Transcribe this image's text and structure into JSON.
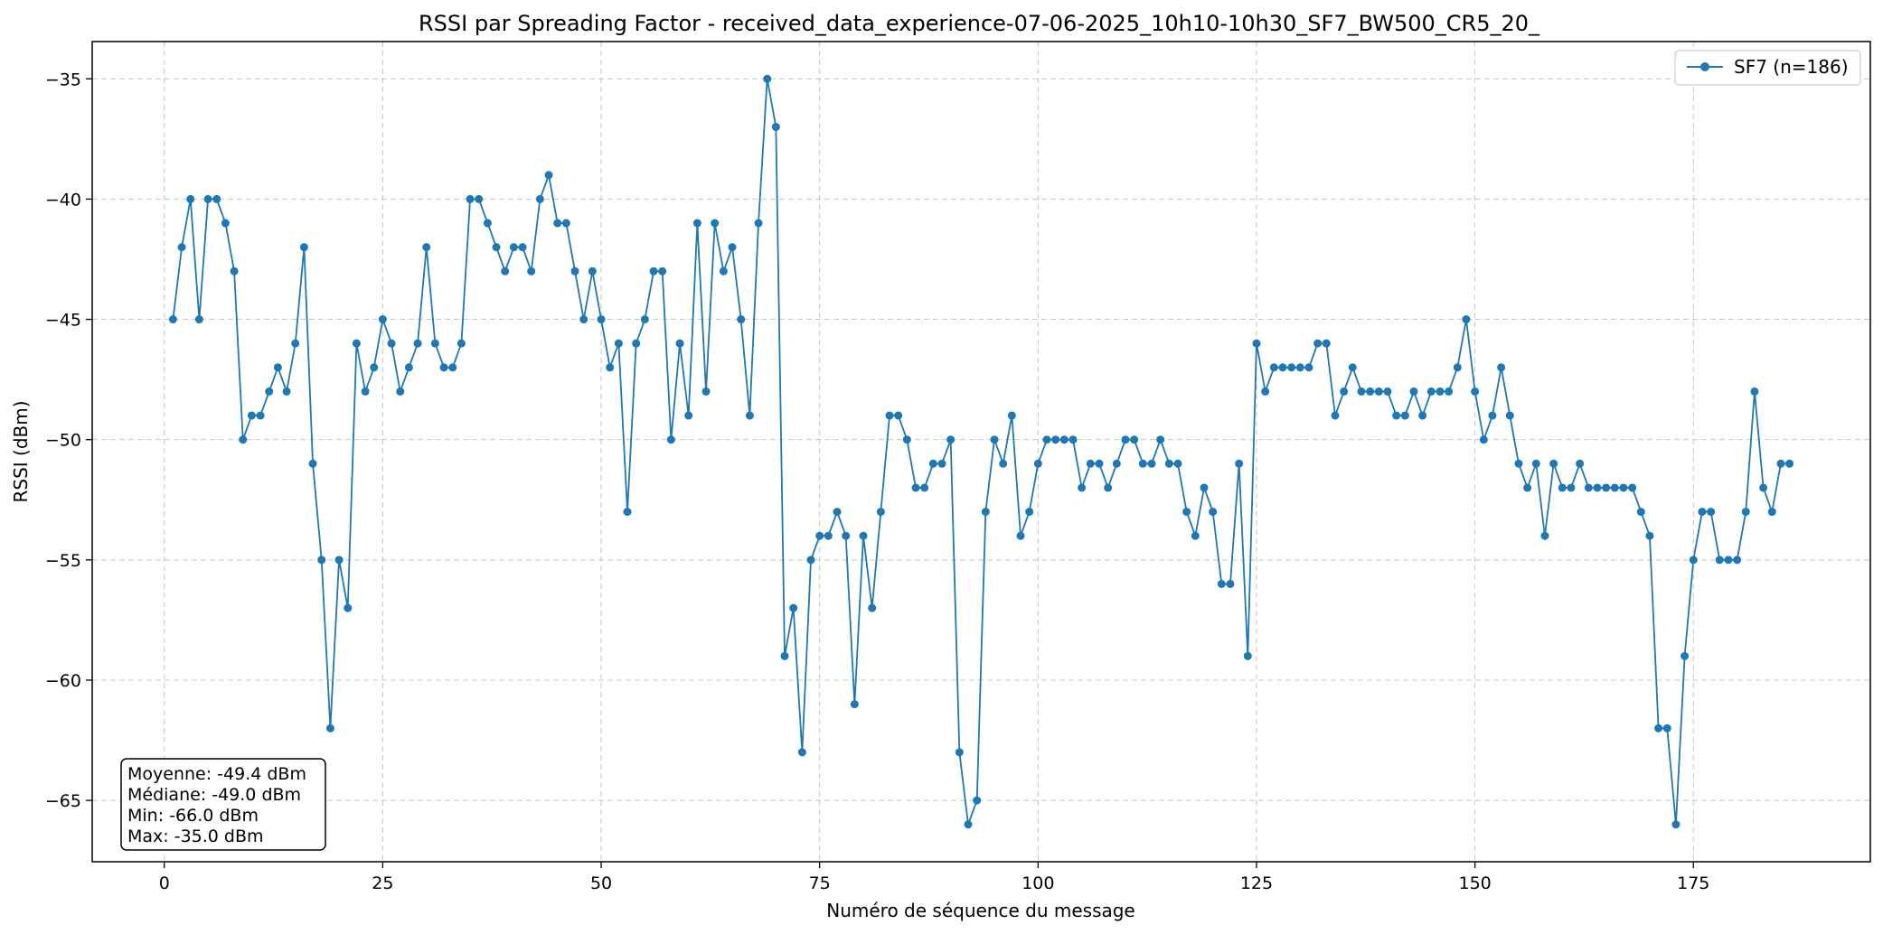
{
  "chart_data": {
    "type": "line",
    "title": "RSSI par Spreading Factor - received_data_experience-07-06-2025_10h10-10h30_SF7_BW500_CR5_20_",
    "xlabel": "Numéro de séquence du message",
    "ylabel": "RSSI (dBm)",
    "xlim": [
      -8.25,
      195.25
    ],
    "ylim": [
      -67.55,
      -33.45
    ],
    "xticks": [
      0,
      25,
      50,
      75,
      100,
      125,
      150,
      175
    ],
    "xtick_labels": [
      "0",
      "25",
      "50",
      "75",
      "100",
      "125",
      "150",
      "175"
    ],
    "yticks": [
      -65,
      -60,
      -55,
      -50,
      -45,
      -40,
      -35
    ],
    "ytick_labels": [
      "−65",
      "−60",
      "−55",
      "−50",
      "−45",
      "−40",
      "−35"
    ],
    "grid": true,
    "legend_position": "top-right",
    "series": [
      {
        "name": "SF7 (n=186)",
        "color": "#1f77b4",
        "x": [
          1,
          2,
          3,
          4,
          5,
          6,
          7,
          8,
          9,
          10,
          11,
          12,
          13,
          14,
          15,
          16,
          17,
          18,
          19,
          20,
          21,
          22,
          23,
          24,
          25,
          26,
          27,
          28,
          29,
          30,
          31,
          32,
          33,
          34,
          35,
          36,
          37,
          38,
          39,
          40,
          41,
          42,
          43,
          44,
          45,
          46,
          47,
          48,
          49,
          50,
          51,
          52,
          53,
          54,
          55,
          56,
          57,
          58,
          59,
          60,
          61,
          62,
          63,
          64,
          65,
          66,
          67,
          68,
          69,
          70,
          71,
          72,
          73,
          74,
          75,
          76,
          77,
          78,
          79,
          80,
          81,
          82,
          83,
          84,
          85,
          86,
          87,
          88,
          89,
          90,
          91,
          92,
          93,
          94,
          95,
          96,
          97,
          98,
          99,
          100,
          101,
          102,
          103,
          104,
          105,
          106,
          107,
          108,
          109,
          110,
          111,
          112,
          113,
          114,
          115,
          116,
          117,
          118,
          119,
          120,
          121,
          122,
          123,
          124,
          125,
          126,
          127,
          128,
          129,
          130,
          131,
          132,
          133,
          134,
          135,
          136,
          137,
          138,
          139,
          140,
          141,
          142,
          143,
          144,
          145,
          146,
          147,
          148,
          149,
          150,
          151,
          152,
          153,
          154,
          155,
          156,
          157,
          158,
          159,
          160,
          161,
          162,
          163,
          164,
          165,
          166,
          167,
          168,
          169,
          170,
          171,
          172,
          173,
          174,
          175,
          176,
          177,
          178,
          179,
          180,
          181,
          182,
          183,
          184,
          185,
          186
        ],
        "y": [
          -45,
          -42,
          -40,
          -45,
          -40,
          -40,
          -41,
          -43,
          -50,
          -49,
          -49,
          -48,
          -47,
          -48,
          -46,
          -42,
          -51,
          -55,
          -62,
          -55,
          -57,
          -46,
          -48,
          -47,
          -45,
          -46,
          -48,
          -47,
          -46,
          -42,
          -46,
          -47,
          -47,
          -46,
          -40,
          -40,
          -41,
          -42,
          -43,
          -42,
          -42,
          -43,
          -40,
          -39,
          -41,
          -41,
          -43,
          -45,
          -43,
          -45,
          -47,
          -46,
          -53,
          -46,
          -45,
          -43,
          -43,
          -50,
          -46,
          -49,
          -41,
          -48,
          -41,
          -43,
          -42,
          -45,
          -49,
          -41,
          -35,
          -37,
          -59,
          -57,
          -63,
          -55,
          -54,
          -54,
          -53,
          -54,
          -61,
          -54,
          -57,
          -53,
          -49,
          -49,
          -50,
          -52,
          -52,
          -51,
          -51,
          -50,
          -63,
          -66,
          -65,
          -53,
          -50,
          -51,
          -49,
          -54,
          -53,
          -51,
          -50,
          -50,
          -50,
          -50,
          -52,
          -51,
          -51,
          -52,
          -51,
          -50,
          -50,
          -51,
          -51,
          -50,
          -51,
          -51,
          -53,
          -54,
          -52,
          -53,
          -56,
          -56,
          -51,
          -59,
          -46,
          -48,
          -47,
          -47,
          -47,
          -47,
          -47,
          -46,
          -46,
          -49,
          -48,
          -47,
          -48,
          -48,
          -48,
          -48,
          -49,
          -49,
          -48,
          -49,
          -48,
          -48,
          -48,
          -47,
          -45,
          -48,
          -50,
          -49,
          -47,
          -49,
          -51,
          -52,
          -51,
          -54,
          -51,
          -52,
          -52,
          -51,
          -52,
          -52,
          -52,
          -52,
          -52,
          -52,
          -53,
          -54,
          -62,
          -62,
          -66,
          -59,
          -55,
          -53,
          -53,
          -55,
          -55,
          -55,
          -53,
          -48,
          -52,
          -53,
          -51,
          -51
        ]
      }
    ],
    "stats": [
      "Moyenne: -49.4 dBm",
      "Médiane: -49.0 dBm",
      "Min: -66.0 dBm",
      "Max: -35.0 dBm"
    ]
  }
}
